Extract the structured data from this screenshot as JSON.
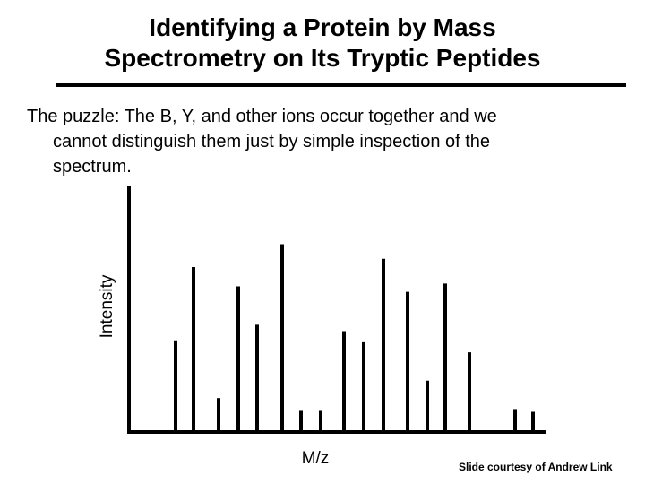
{
  "slide": {
    "title_line1": "Identifying a Protein by Mass",
    "title_line2": "Spectrometry on Its Tryptic Peptides",
    "body_line1": "The puzzle: The B, Y, and other ions occur together and we",
    "body_line2": "cannot distinguish them just by simple inspection of the",
    "body_line3": "spectrum.",
    "credit": "Slide courtesy of Andrew Link"
  },
  "chart_data": {
    "type": "bar",
    "title": "",
    "xlabel": "M/z",
    "ylabel": "Intensity",
    "x": [
      196,
      216,
      244,
      266,
      287,
      315,
      336,
      358,
      384,
      406,
      428,
      455,
      477,
      497,
      524,
      575,
      595
    ],
    "values": [
      100,
      180,
      37,
      159,
      117,
      205,
      24,
      24,
      110,
      98,
      189,
      153,
      56,
      162,
      87,
      25,
      22
    ],
    "xlim": [
      144,
      610
    ],
    "ylim": [
      0,
      270
    ],
    "grid": false,
    "colors": {
      "stem": "#000000",
      "axis": "#000000"
    }
  }
}
